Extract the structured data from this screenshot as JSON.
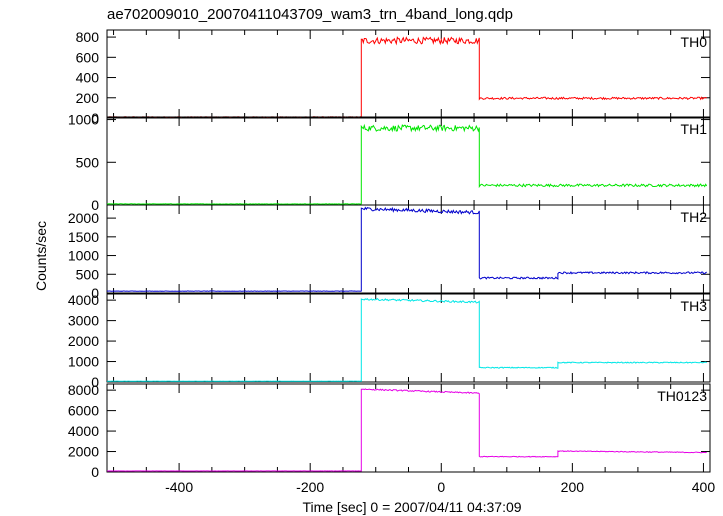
{
  "chart_data": {
    "type": "line",
    "title": "ae702009010_20070411043709_wam3_trn_4band_long.qdp",
    "xlabel": "Time [sec] 0 = 2007/04/11 04:37:09",
    "ylabel": "Counts/sec",
    "xlim": [
      -510,
      410
    ],
    "xticks": [
      -400,
      -200,
      0,
      200,
      400
    ],
    "grid": false,
    "panels": [
      {
        "name": "TH0",
        "color": "#ff0000",
        "ylim": [
          0,
          870
        ],
        "yticks": [
          0,
          200,
          400,
          600,
          800
        ],
        "segments": [
          {
            "x0": -510,
            "x1": -122,
            "level": 10,
            "noise": 2
          },
          {
            "x0": -122,
            "x1": 58,
            "level": 765,
            "noise": 32
          },
          {
            "x0": 58,
            "x1": 405,
            "level": 195,
            "noise": 10
          }
        ]
      },
      {
        "name": "TH1",
        "color": "#00e600",
        "ylim": [
          0,
          1030
        ],
        "yticks": [
          0,
          500,
          1000
        ],
        "segments": [
          {
            "x0": -510,
            "x1": -122,
            "level": 12,
            "noise": 2
          },
          {
            "x0": -122,
            "x1": 58,
            "level": 900,
            "noise": 35
          },
          {
            "x0": 58,
            "x1": 405,
            "level": 230,
            "noise": 15
          }
        ]
      },
      {
        "name": "TH2",
        "color": "#0000cc",
        "ylim": [
          0,
          2350
        ],
        "yticks": [
          0,
          500,
          1000,
          1500,
          2000
        ],
        "segments": [
          {
            "x0": -510,
            "x1": -122,
            "level": 50,
            "noise": 5
          },
          {
            "x0": -122,
            "x1": 58,
            "level": 2150,
            "start": 2250,
            "noise": 45
          },
          {
            "x0": 58,
            "x1": 178,
            "level": 400,
            "noise": 25
          },
          {
            "x0": 178,
            "x1": 405,
            "level": 540,
            "noise": 25
          }
        ]
      },
      {
        "name": "TH3",
        "color": "#00e6e6",
        "ylim": [
          0,
          4300
        ],
        "yticks": [
          0,
          1000,
          2000,
          3000,
          4000
        ],
        "segments": [
          {
            "x0": -510,
            "x1": -122,
            "level": 40,
            "noise": 5
          },
          {
            "x0": -122,
            "x1": 58,
            "level": 3900,
            "start": 4050,
            "noise": 45
          },
          {
            "x0": 58,
            "x1": 178,
            "level": 700,
            "noise": 25
          },
          {
            "x0": 178,
            "x1": 405,
            "level": 950,
            "noise": 25
          }
        ]
      },
      {
        "name": "TH0123",
        "color": "#e600e6",
        "ylim": [
          0,
          8600
        ],
        "yticks": [
          0,
          2000,
          4000,
          6000,
          8000
        ],
        "segments": [
          {
            "x0": -510,
            "x1": -122,
            "level": 100,
            "noise": 8
          },
          {
            "x0": -122,
            "x1": 58,
            "level": 7700,
            "start": 8100,
            "noise": 60
          },
          {
            "x0": 58,
            "x1": 178,
            "level": 1500,
            "noise": 40
          },
          {
            "x0": 178,
            "x1": 405,
            "level": 1900,
            "start": 2050,
            "noise": 40
          }
        ]
      }
    ]
  }
}
